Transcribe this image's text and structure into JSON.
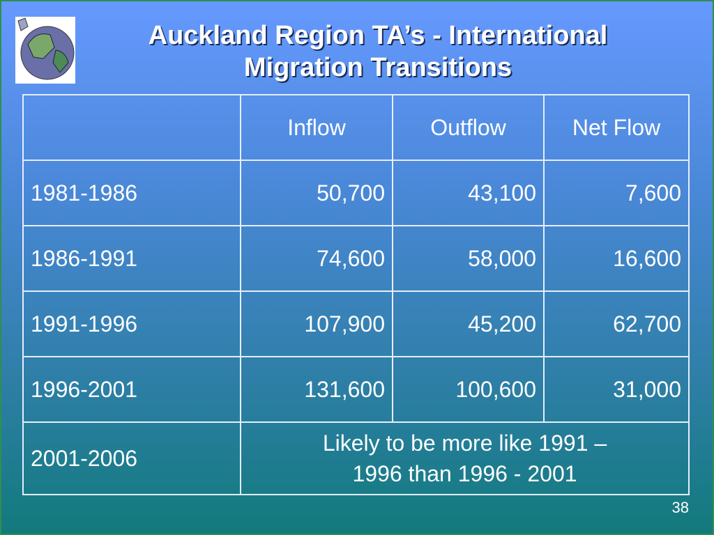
{
  "header": {
    "title_lines": [
      "Auckland Region TA’s - International",
      "Migration Transitions"
    ]
  },
  "table": {
    "columns": [
      "Inflow",
      "Outflow",
      "Net Flow"
    ],
    "rows": [
      [
        "1981-1986",
        "50,700",
        "43,100",
        "7,600"
      ],
      [
        "1986-1991",
        "74,600",
        "58,000",
        "16,600"
      ],
      [
        "1991-1996",
        "107,900",
        "45,200",
        "62,700"
      ],
      [
        "1996-2001",
        "131,600",
        "100,600",
        "31,000"
      ]
    ],
    "last_row": {
      "label": "2001-2006",
      "note_lines": [
        "Likely to be more like 1991 –",
        "1996 than 1996 - 2001"
      ]
    }
  },
  "footer": {
    "page_number": "38"
  }
}
